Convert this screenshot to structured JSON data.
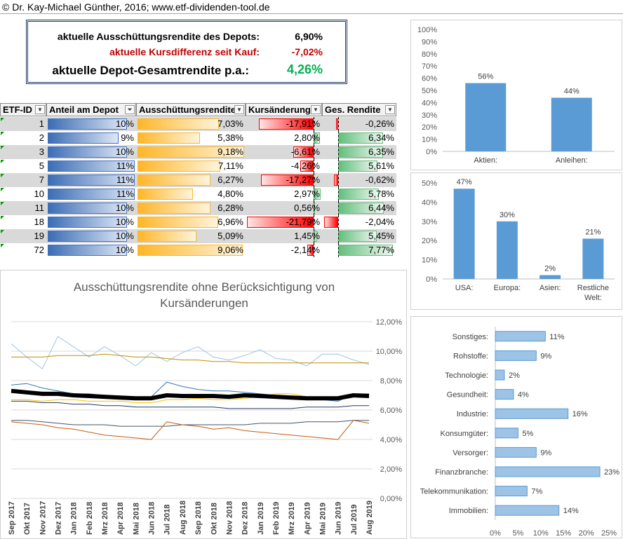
{
  "header": {
    "copyright": "© Dr. Kay-Michael Günther, 2016; www.etf-dividenden-tool.de"
  },
  "summary": {
    "dividend_label": "aktuelle Ausschüttungsrendite des Depots:",
    "dividend_value": "6,90%",
    "price_label": "aktuelle Kursdifferenz seit Kauf:",
    "price_value": "-7,02%",
    "total_label": "aktuelle Depot-Gesamtrendite p.a.:",
    "total_value": "4,26%"
  },
  "table": {
    "headers": [
      "ETF-ID",
      "Anteil am Depot",
      "Ausschüttungsrendite",
      "Kursänderung",
      "Ges. Rendite"
    ],
    "rows": [
      {
        "id": "1",
        "anteil": "10%",
        "anteil_v": 10,
        "aus": "7,03%",
        "aus_v": 7.03,
        "kurs": "-17,91%",
        "kurs_v": -17.91,
        "ges": "-0,26%",
        "ges_v": -0.26
      },
      {
        "id": "2",
        "anteil": "9%",
        "anteil_v": 9,
        "aus": "5,38%",
        "aus_v": 5.38,
        "kurs": "2,80%",
        "kurs_v": 2.8,
        "ges": "6,34%",
        "ges_v": 6.34
      },
      {
        "id": "3",
        "anteil": "10%",
        "anteil_v": 10,
        "aus": "9,18%",
        "aus_v": 9.18,
        "kurs": "-6,61%",
        "kurs_v": -6.61,
        "ges": "6,35%",
        "ges_v": 6.35
      },
      {
        "id": "5",
        "anteil": "11%",
        "anteil_v": 11,
        "aus": "7,11%",
        "aus_v": 7.11,
        "kurs": "-4,26%",
        "kurs_v": -4.26,
        "ges": "5,61%",
        "ges_v": 5.61
      },
      {
        "id": "7",
        "anteil": "11%",
        "anteil_v": 11,
        "aus": "6,27%",
        "aus_v": 6.27,
        "kurs": "-17,27%",
        "kurs_v": -17.27,
        "ges": "-0,62%",
        "ges_v": -0.62
      },
      {
        "id": "10",
        "anteil": "11%",
        "anteil_v": 11,
        "aus": "4,80%",
        "aus_v": 4.8,
        "kurs": "2,97%",
        "kurs_v": 2.97,
        "ges": "5,78%",
        "ges_v": 5.78
      },
      {
        "id": "11",
        "anteil": "10%",
        "anteil_v": 10,
        "aus": "6,28%",
        "aus_v": 6.28,
        "kurs": "0,56%",
        "kurs_v": 0.56,
        "ges": "6,44%",
        "ges_v": 6.44
      },
      {
        "id": "18",
        "anteil": "10%",
        "anteil_v": 10,
        "aus": "6,96%",
        "aus_v": 6.96,
        "kurs": "-21,79%",
        "kurs_v": -21.79,
        "ges": "-2,04%",
        "ges_v": -2.04
      },
      {
        "id": "19",
        "anteil": "10%",
        "anteil_v": 10,
        "aus": "5,09%",
        "aus_v": 5.09,
        "kurs": "1,45%",
        "kurs_v": 1.45,
        "ges": "5,45%",
        "ges_v": 5.45
      },
      {
        "id": "72",
        "anteil": "10%",
        "anteil_v": 10,
        "aus": "9,06%",
        "aus_v": 9.06,
        "kurs": "-2,14%",
        "kurs_v": -2.14,
        "ges": "7,77%",
        "ges_v": 7.77
      }
    ]
  },
  "colors": {
    "dividend_value": "#000000",
    "price_value": "#c00000",
    "total_value": "#00b050",
    "bar_blue": "#5b9bd5",
    "line_bold": "#000000"
  },
  "chart_data": [
    {
      "type": "bar",
      "categories": [
        "Aktien:",
        "Anleihen:"
      ],
      "values": [
        56,
        44
      ],
      "data_labels": [
        "56%",
        "44%"
      ],
      "y_ticks": [
        "0%",
        "10%",
        "20%",
        "30%",
        "40%",
        "50%",
        "60%",
        "70%",
        "80%",
        "90%",
        "100%"
      ],
      "ylim": [
        0,
        100
      ],
      "color": "#5b9bd5"
    },
    {
      "type": "bar",
      "categories": [
        "USA:",
        "Europa:",
        "Asien:",
        "Restliche Welt:"
      ],
      "values": [
        47,
        30,
        2,
        21
      ],
      "data_labels": [
        "47%",
        "30%",
        "2%",
        "21%"
      ],
      "y_ticks": [
        "0%",
        "10%",
        "20%",
        "30%",
        "40%",
        "50%"
      ],
      "ylim": [
        0,
        50
      ],
      "color": "#5b9bd5"
    },
    {
      "type": "bar",
      "orientation": "horizontal",
      "categories": [
        "Sonstiges:",
        "Rohstoffe:",
        "Technologie:",
        "Gesundheit:",
        "Industrie:",
        "Konsumgüter:",
        "Versorger:",
        "Finanzbranche:",
        "Telekommunikation:",
        "Immobilien:"
      ],
      "values": [
        11,
        9,
        2,
        4,
        16,
        5,
        9,
        23,
        7,
        14
      ],
      "data_labels": [
        "11%",
        "9%",
        "2%",
        "4%",
        "16%",
        "5%",
        "9%",
        "23%",
        "7%",
        "14%"
      ],
      "x_ticks": [
        "0%",
        "5%",
        "10%",
        "15%",
        "20%",
        "25%"
      ],
      "xlim": [
        0,
        25
      ],
      "color": "#9dc3e6"
    },
    {
      "type": "line",
      "title": "Ausschüttungsrendite ohne Berücksichtigung von Kursänderungen",
      "x": [
        "Sep 2017",
        "Okt 2017",
        "Nov 2017",
        "Dez 2017",
        "Jan 2018",
        "Feb 2018",
        "Mrz 2018",
        "Apr 2018",
        "Mai 2018",
        "Jun 2018",
        "Jul 2018",
        "Aug 2018",
        "Sep 2018",
        "Okt 2018",
        "Nov 2018",
        "Dez 2018",
        "Jan 2019",
        "Feb 2019",
        "Mrz 2019",
        "Apr 2019",
        "Mai 2019",
        "Jun 2019",
        "Jul 2019",
        "Aug 2019"
      ],
      "y_ticks": [
        "0,00%",
        "2,00%",
        "4,00%",
        "6,00%",
        "8,00%",
        "10,00%",
        "12,00%"
      ],
      "ylim": [
        0,
        12
      ],
      "y_axis_position": "right",
      "series": [
        {
          "color": "#9dc3e6",
          "width": 1,
          "values": [
            10.5,
            9.6,
            8.8,
            11.0,
            10.3,
            9.6,
            10.3,
            9.7,
            9.0,
            9.9,
            9.3,
            9.9,
            10.3,
            9.6,
            9.4,
            9.7,
            10.1,
            9.5,
            9.4,
            9.0,
            9.8,
            9.8,
            9.4,
            9.1
          ]
        },
        {
          "color": "#bf9000",
          "width": 1,
          "values": [
            9.6,
            9.6,
            9.6,
            9.7,
            9.7,
            9.7,
            9.8,
            9.7,
            9.6,
            9.6,
            9.5,
            9.4,
            9.4,
            9.3,
            9.3,
            9.2,
            9.2,
            9.2,
            9.2,
            9.2,
            9.2,
            9.2,
            9.2,
            9.2
          ]
        },
        {
          "color": "#000000",
          "width": 6,
          "values": [
            7.3,
            7.2,
            7.1,
            7.1,
            7.0,
            6.95,
            6.9,
            6.85,
            6.8,
            6.8,
            7.0,
            6.95,
            6.95,
            6.95,
            6.9,
            7.0,
            6.95,
            6.9,
            6.85,
            6.8,
            6.8,
            6.8,
            7.0,
            6.95
          ]
        },
        {
          "color": "#2e75b6",
          "width": 1,
          "values": [
            7.7,
            7.8,
            7.5,
            7.3,
            7.1,
            7.1,
            7.0,
            6.9,
            6.9,
            6.9,
            7.9,
            7.6,
            7.4,
            7.3,
            7.3,
            7.2,
            7.1,
            7.0,
            6.9,
            6.8,
            6.7,
            6.6,
            7.1,
            7.1
          ]
        },
        {
          "color": "#ffc000",
          "width": 1,
          "values": [
            6.7,
            6.7,
            6.6,
            6.7,
            6.7,
            6.6,
            6.6,
            6.6,
            6.5,
            6.5,
            6.7,
            6.7,
            6.8,
            6.7,
            6.7,
            6.8,
            6.9,
            7.1,
            7.1,
            6.9,
            6.8,
            6.8,
            6.9,
            6.9
          ]
        },
        {
          "color": "#203864",
          "width": 1,
          "values": [
            6.6,
            6.6,
            6.5,
            6.5,
            6.4,
            6.4,
            6.3,
            6.3,
            6.2,
            6.2,
            6.2,
            6.2,
            6.2,
            6.2,
            6.1,
            6.1,
            6.1,
            6.1,
            6.1,
            6.2,
            6.2,
            6.2,
            6.3,
            6.3
          ]
        },
        {
          "color": "#44546a",
          "width": 1,
          "values": [
            5.3,
            5.3,
            5.2,
            5.1,
            5.0,
            5.0,
            5.0,
            4.9,
            4.9,
            4.9,
            4.9,
            5.0,
            5.0,
            5.0,
            5.0,
            5.0,
            5.1,
            5.1,
            5.1,
            5.2,
            5.2,
            5.2,
            5.3,
            5.3
          ]
        },
        {
          "color": "#c55a11",
          "width": 1,
          "values": [
            5.2,
            5.1,
            5.0,
            4.8,
            4.7,
            4.5,
            4.3,
            4.2,
            4.1,
            4.0,
            5.2,
            5.0,
            4.9,
            4.7,
            4.8,
            4.6,
            4.5,
            4.4,
            4.3,
            4.2,
            4.1,
            4.0,
            5.3,
            5.1
          ]
        }
      ]
    }
  ]
}
